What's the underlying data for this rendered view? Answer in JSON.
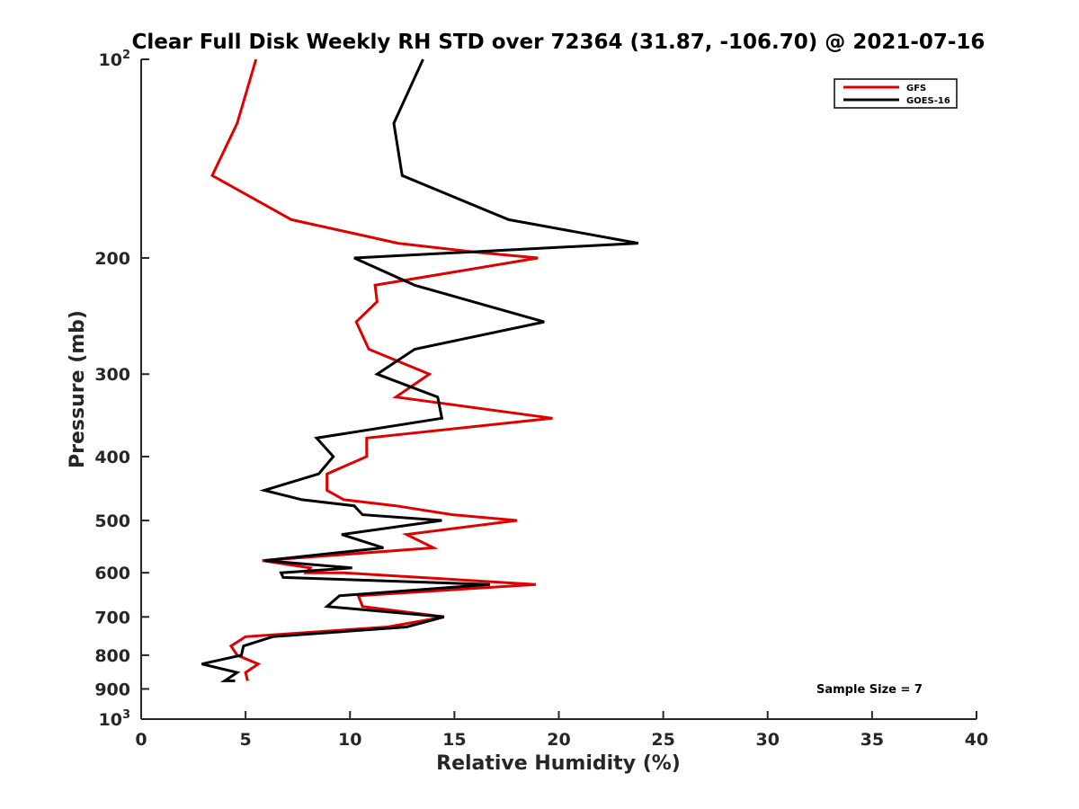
{
  "chart_data": {
    "type": "line",
    "title": "Clear Full Disk Weekly RH STD over 72364 (31.87, -106.70) @ 2021-07-16",
    "xlabel": "Relative Humidity (%)",
    "ylabel": "Pressure (mb)",
    "xlim": [
      0,
      40
    ],
    "ylim": [
      100,
      1000
    ],
    "y_scale": "log",
    "y_reversed": true,
    "x_ticks": [
      "0",
      "5",
      "10",
      "15",
      "20",
      "25",
      "30",
      "35",
      "40"
    ],
    "y_ticks": [
      {
        "value": 100,
        "base": "10",
        "exp": "2"
      },
      {
        "value": 200,
        "label": "200"
      },
      {
        "value": 300,
        "label": "300"
      },
      {
        "value": 400,
        "label": "400"
      },
      {
        "value": 500,
        "label": "500"
      },
      {
        "value": 600,
        "label": "600"
      },
      {
        "value": 700,
        "label": "700"
      },
      {
        "value": 800,
        "label": "800"
      },
      {
        "value": 900,
        "label": "900"
      },
      {
        "value": 1000,
        "base": "10",
        "exp": "3"
      }
    ],
    "legend_position": "top-right",
    "grid": false,
    "series": [
      {
        "name": "GFS",
        "color": "#e00000",
        "points": [
          [
            5.5,
            100
          ],
          [
            4.6,
            125
          ],
          [
            3.4,
            150
          ],
          [
            7.2,
            175
          ],
          [
            12.3,
            190
          ],
          [
            16.0,
            196
          ],
          [
            19.0,
            200
          ],
          [
            11.2,
            220
          ],
          [
            11.3,
            233
          ],
          [
            10.3,
            250
          ],
          [
            10.9,
            275
          ],
          [
            13.8,
            300
          ],
          [
            12.2,
            325
          ],
          [
            19.7,
            350
          ],
          [
            10.8,
            375
          ],
          [
            10.8,
            400
          ],
          [
            8.9,
            425
          ],
          [
            8.9,
            450
          ],
          [
            9.7,
            465
          ],
          [
            12.2,
            475
          ],
          [
            14.9,
            490
          ],
          [
            18.0,
            500
          ],
          [
            12.7,
            525
          ],
          [
            14.0,
            550
          ],
          [
            5.8,
            575
          ],
          [
            8.1,
            590
          ],
          [
            7.9,
            600
          ],
          [
            9.7,
            600
          ],
          [
            18.9,
            625
          ],
          [
            10.4,
            650
          ],
          [
            10.6,
            675
          ],
          [
            14.5,
            700
          ],
          [
            11.8,
            725
          ],
          [
            5.0,
            750
          ],
          [
            4.3,
            775
          ],
          [
            4.6,
            800
          ],
          [
            5.6,
            825
          ],
          [
            5.0,
            850
          ],
          [
            5.1,
            875
          ]
        ]
      },
      {
        "name": "GOES-16",
        "color": "#000000",
        "points": [
          [
            13.5,
            100
          ],
          [
            12.1,
            125
          ],
          [
            12.5,
            150
          ],
          [
            17.6,
            175
          ],
          [
            23.8,
            190
          ],
          [
            10.2,
            200
          ],
          [
            13.1,
            220
          ],
          [
            19.3,
            250
          ],
          [
            13.1,
            275
          ],
          [
            11.3,
            300
          ],
          [
            14.2,
            325
          ],
          [
            14.4,
            350
          ],
          [
            8.4,
            375
          ],
          [
            9.2,
            400
          ],
          [
            8.5,
            425
          ],
          [
            5.9,
            450
          ],
          [
            7.7,
            465
          ],
          [
            10.2,
            475
          ],
          [
            10.6,
            490
          ],
          [
            14.4,
            500
          ],
          [
            9.6,
            525
          ],
          [
            11.6,
            550
          ],
          [
            5.9,
            575
          ],
          [
            10.1,
            590
          ],
          [
            6.7,
            600
          ],
          [
            6.8,
            610
          ],
          [
            16.7,
            625
          ],
          [
            9.5,
            650
          ],
          [
            8.9,
            675
          ],
          [
            14.5,
            700
          ],
          [
            12.7,
            725
          ],
          [
            6.3,
            750
          ],
          [
            4.9,
            775
          ],
          [
            4.8,
            800
          ],
          [
            2.9,
            825
          ],
          [
            4.6,
            850
          ],
          [
            4.0,
            875
          ],
          [
            4.5,
            875
          ]
        ]
      }
    ],
    "annotation": "Sample Size = 7"
  }
}
